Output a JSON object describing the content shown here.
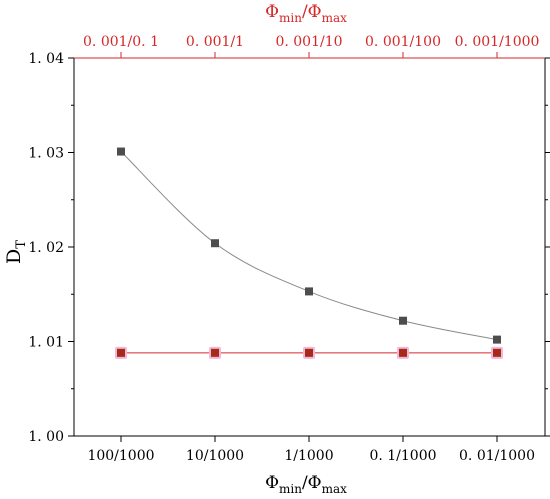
{
  "chart_data": {
    "type": "line",
    "x_bottom": {
      "title_main": "Φ",
      "title_sub_1": "min",
      "title_sep": "/Φ",
      "title_sub_2": "max",
      "categories": [
        "100/1000",
        "10/1000",
        "1/1000",
        "0. 1/1000",
        "0. 01/1000"
      ]
    },
    "x_top": {
      "title_main": "Φ",
      "title_sub_1": "min",
      "title_sep": "/Φ",
      "title_sub_2": "max",
      "categories": [
        "0. 001/0. 1",
        "0. 001/1",
        "0. 001/10",
        "0. 001/100",
        "0. 001/1000"
      ],
      "color": "#d62728"
    },
    "y": {
      "title_main": "D",
      "title_sub": "T",
      "ylim": [
        1.0,
        1.04
      ],
      "ticks": [
        "1. 00",
        "1. 01",
        "1. 02",
        "1. 03",
        "1. 04"
      ],
      "tick_values": [
        1.0,
        1.01,
        1.02,
        1.03,
        1.04
      ]
    },
    "series": [
      {
        "axis": "bottom",
        "values": [
          1.0301,
          1.0204,
          1.0153,
          1.0122,
          1.0102
        ],
        "marker_color": "#4d4d4d",
        "line_color": "#8a8a8a",
        "marker": "square"
      },
      {
        "axis": "top",
        "values": [
          1.0088,
          1.0088,
          1.0088,
          1.0088,
          1.0088
        ],
        "marker_color": "#a52a1a",
        "line_color": "#d62728",
        "marker": "square",
        "marker_glow": "#f4b6d8"
      }
    ]
  }
}
